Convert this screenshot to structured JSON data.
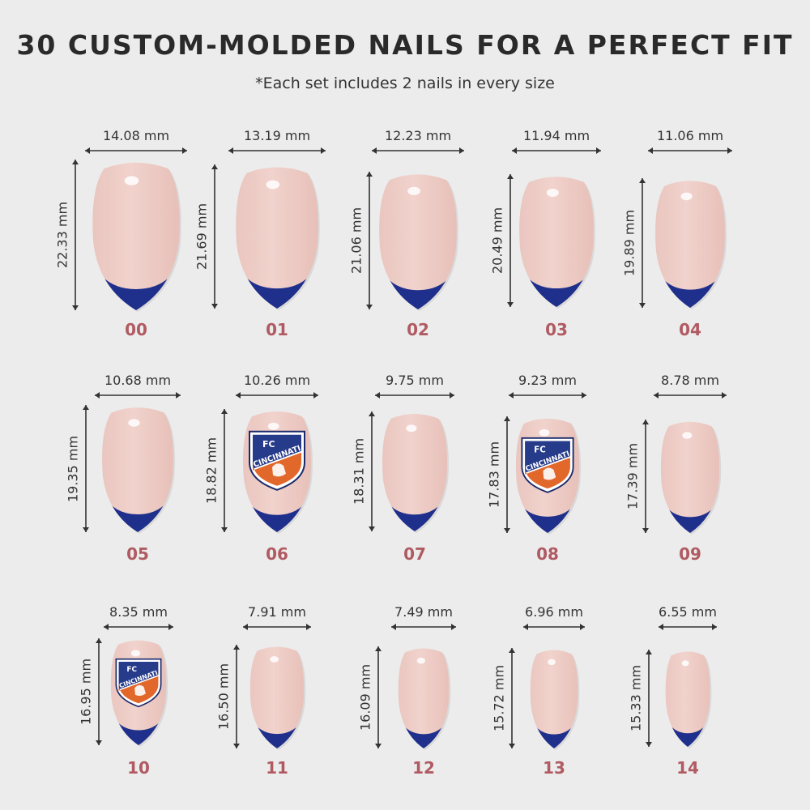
{
  "title": "30 CUSTOM-MOLDED NAILS FOR A PERFECT FIT",
  "subtitle": "*Each set includes 2 nails in every size",
  "colors": {
    "nail_base": "#f1d2cc",
    "nail_tip": "#1e2f8c",
    "size_number": "#b05a62",
    "background": "#ececec",
    "logo_blue": "#263b8a",
    "logo_orange": "#e2672b"
  },
  "logo_text": {
    "fc": "FC",
    "name": "CINCINNATI"
  },
  "nails": [
    {
      "size": "00",
      "width": "14.08 mm",
      "height": "22.33 mm",
      "logo": false
    },
    {
      "size": "01",
      "width": "13.19 mm",
      "height": "21.69 mm",
      "logo": false
    },
    {
      "size": "02",
      "width": "12.23 mm",
      "height": "21.06 mm",
      "logo": false
    },
    {
      "size": "03",
      "width": "11.94 mm",
      "height": "20.49 mm",
      "logo": false
    },
    {
      "size": "04",
      "width": "11.06 mm",
      "height": "19.89 mm",
      "logo": false
    },
    {
      "size": "05",
      "width": "10.68 mm",
      "height": "19.35 mm",
      "logo": false
    },
    {
      "size": "06",
      "width": "10.26 mm",
      "height": "18.82 mm",
      "logo": true
    },
    {
      "size": "07",
      "width": "9.75 mm",
      "height": "18.31 mm",
      "logo": false
    },
    {
      "size": "08",
      "width": "9.23 mm",
      "height": "17.83 mm",
      "logo": true
    },
    {
      "size": "09",
      "width": "8.78 mm",
      "height": "17.39 mm",
      "logo": false
    },
    {
      "size": "10",
      "width": "8.35 mm",
      "height": "16.95 mm",
      "logo": true
    },
    {
      "size": "11",
      "width": "7.91 mm",
      "height": "16.50 mm",
      "logo": false
    },
    {
      "size": "12",
      "width": "7.49 mm",
      "height": "16.09 mm",
      "logo": false
    },
    {
      "size": "13",
      "width": "6.96 mm",
      "height": "15.72 mm",
      "logo": false
    },
    {
      "size": "14",
      "width": "6.55 mm",
      "height": "15.33 mm",
      "logo": false
    }
  ]
}
